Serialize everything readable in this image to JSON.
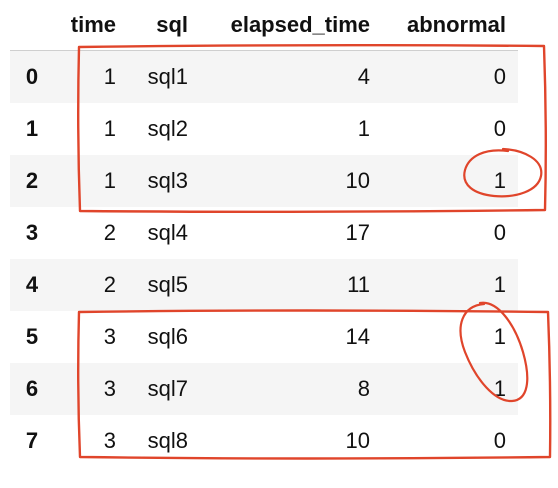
{
  "table": {
    "columns": [
      "",
      "time",
      "sql",
      "elapsed_time",
      "abnormal"
    ],
    "rows": [
      {
        "index": "0",
        "time": "1",
        "sql": "sql1",
        "elapsed_time": "4",
        "abnormal": "0"
      },
      {
        "index": "1",
        "time": "1",
        "sql": "sql2",
        "elapsed_time": "1",
        "abnormal": "0"
      },
      {
        "index": "2",
        "time": "1",
        "sql": "sql3",
        "elapsed_time": "10",
        "abnormal": "1"
      },
      {
        "index": "3",
        "time": "2",
        "sql": "sql4",
        "elapsed_time": "17",
        "abnormal": "0"
      },
      {
        "index": "4",
        "time": "2",
        "sql": "sql5",
        "elapsed_time": "11",
        "abnormal": "1"
      },
      {
        "index": "5",
        "time": "3",
        "sql": "sql6",
        "elapsed_time": "14",
        "abnormal": "1"
      },
      {
        "index": "6",
        "time": "3",
        "sql": "sql7",
        "elapsed_time": "8",
        "abnormal": "1"
      },
      {
        "index": "7",
        "time": "3",
        "sql": "sql8",
        "elapsed_time": "10",
        "abnormal": "0"
      }
    ]
  },
  "annotations": {
    "color": "#e0452b"
  }
}
